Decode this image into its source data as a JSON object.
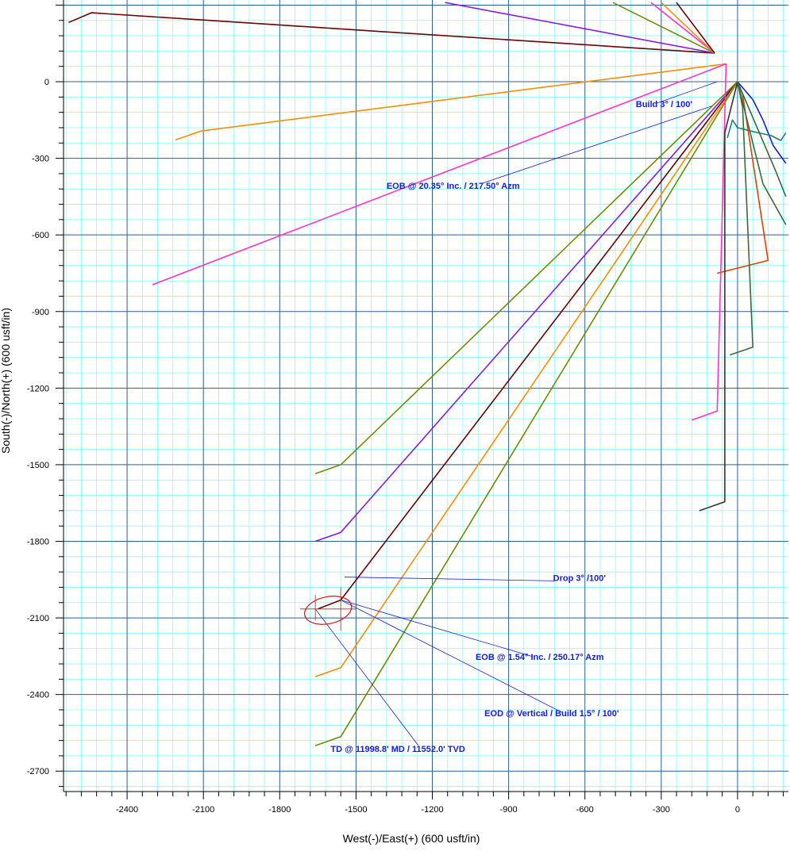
{
  "chart_data": {
    "type": "line",
    "title": "",
    "xlabel": "West(-)/East(+) (600 usft/in)",
    "ylabel": "South(-)/North(+) (600 usft/in)",
    "xlim": [
      -2650,
      200
    ],
    "ylim": [
      -2780,
      320
    ],
    "x_ticks": [
      -2400,
      -2100,
      -1800,
      -1500,
      -1200,
      -900,
      -600,
      -300,
      0
    ],
    "y_ticks": [
      0,
      -300,
      -600,
      -900,
      -1200,
      -1500,
      -1800,
      -2100,
      -2400,
      -2700
    ],
    "x_tick_labels": [
      "-2400",
      "-2100",
      "-1800",
      "-1500",
      "-1200",
      "-900",
      "-600",
      "-300",
      "0"
    ],
    "y_tick_labels": [
      "0",
      "-300",
      "-600",
      "-900",
      "-1200",
      "-1500",
      "-1800",
      "-2100",
      "-2400",
      "-2700"
    ],
    "minor_grid_step": 60,
    "major_grid_step": 300,
    "grid": true,
    "colors": {
      "minor_grid": "#7fffff",
      "major_grid": "#2f5f8f",
      "annotation": "#1020e0",
      "target": "#e01010"
    },
    "series": [
      {
        "color": "#6b0000",
        "x": [
          -2630,
          -2540,
          -90
        ],
        "y": [
          232,
          270,
          112
        ]
      },
      {
        "color": "#8b1ae0",
        "x": [
          -1150,
          -90
        ],
        "y": [
          310,
          112
        ]
      },
      {
        "color": "#6b8e00",
        "x": [
          -490,
          -90
        ],
        "y": [
          310,
          112
        ]
      },
      {
        "color": "#ff33cc",
        "x": [
          -340,
          -90
        ],
        "y": [
          310,
          112
        ]
      },
      {
        "color": "#ff8c00",
        "x": [
          -300,
          -90
        ],
        "y": [
          310,
          112
        ]
      },
      {
        "color": "#6b0000",
        "x": [
          -240,
          -90
        ],
        "y": [
          310,
          112
        ]
      },
      {
        "color": "#ff8c00",
        "x": [
          -2210,
          -2110,
          -45
        ],
        "y": [
          -228,
          -193,
          70
        ]
      },
      {
        "color": "#ff33cc",
        "x": [
          -2300,
          -45
        ],
        "y": [
          -795,
          70
        ]
      },
      {
        "color": "#1020e0",
        "x": [
          0,
          60,
          100,
          140,
          190
        ],
        "y": [
          0,
          -70,
          -150,
          -250,
          -320
        ]
      },
      {
        "color": "#1f7f7f",
        "x": [
          -40,
          -20,
          0,
          40,
          80,
          130,
          170,
          190
        ],
        "y": [
          -220,
          -150,
          -180,
          -190,
          -200,
          -210,
          -230,
          -200
        ]
      },
      {
        "color": "#e04000",
        "x": [
          -80,
          120,
          20,
          0
        ],
        "y": [
          -750,
          -700,
          -50,
          0
        ]
      },
      {
        "color": "#3a6a3a",
        "x": [
          -30,
          60,
          20,
          0
        ],
        "y": [
          -1070,
          -1040,
          -100,
          0
        ]
      },
      {
        "color": "#6b8e00",
        "x": [
          -1660,
          -1560,
          0
        ],
        "y": [
          -1535,
          -1500,
          0
        ]
      },
      {
        "color": "#8b1ae0",
        "x": [
          -1660,
          -1560,
          0
        ],
        "y": [
          -1800,
          -1765,
          0
        ]
      },
      {
        "color": "#6b0000",
        "x": [
          -1650,
          -1560,
          0
        ],
        "y": [
          -2065,
          -2030,
          0
        ]
      },
      {
        "color": "#ff8c00",
        "x": [
          -1660,
          -1560,
          0
        ],
        "y": [
          -2330,
          -2295,
          0
        ]
      },
      {
        "color": "#6b8e00",
        "x": [
          -1660,
          -1560,
          0
        ],
        "y": [
          -2600,
          -2565,
          0
        ]
      },
      {
        "color": "#ff33cc",
        "x": [
          -180,
          -80,
          -45
        ],
        "y": [
          -1325,
          -1290,
          70
        ]
      },
      {
        "color": "#333333",
        "x": [
          -150,
          -50,
          -50,
          0
        ],
        "y": [
          -1680,
          -1645,
          -200,
          0
        ]
      },
      {
        "color": "#3a6a3a",
        "x": [
          190,
          150,
          0
        ],
        "y": [
          -450,
          -350,
          0
        ]
      },
      {
        "color": "#3a6a3a",
        "x": [
          190,
          100,
          0
        ],
        "y": [
          -560,
          -400,
          0
        ]
      }
    ],
    "annotations": [
      {
        "text": "Build 3° / 100'",
        "x": -400,
        "y": -100
      },
      {
        "text": "EOB @ 20.35° Inc. / 217.50° Azm",
        "x": -1380,
        "y": -420
      },
      {
        "text": "Drop 3° /100'",
        "x": -725,
        "y": -1955
      },
      {
        "text": "EOB @ 1.54° Inc. / 250.17° Azm",
        "x": -1030,
        "y": -2265
      },
      {
        "text": "EOD @ Vertical / Build 1.5° / 100'",
        "x": -995,
        "y": -2485
      },
      {
        "text": "TD @ 11998.8' MD / 11552.0' TVD",
        "x": -1600,
        "y": -2625
      }
    ]
  }
}
